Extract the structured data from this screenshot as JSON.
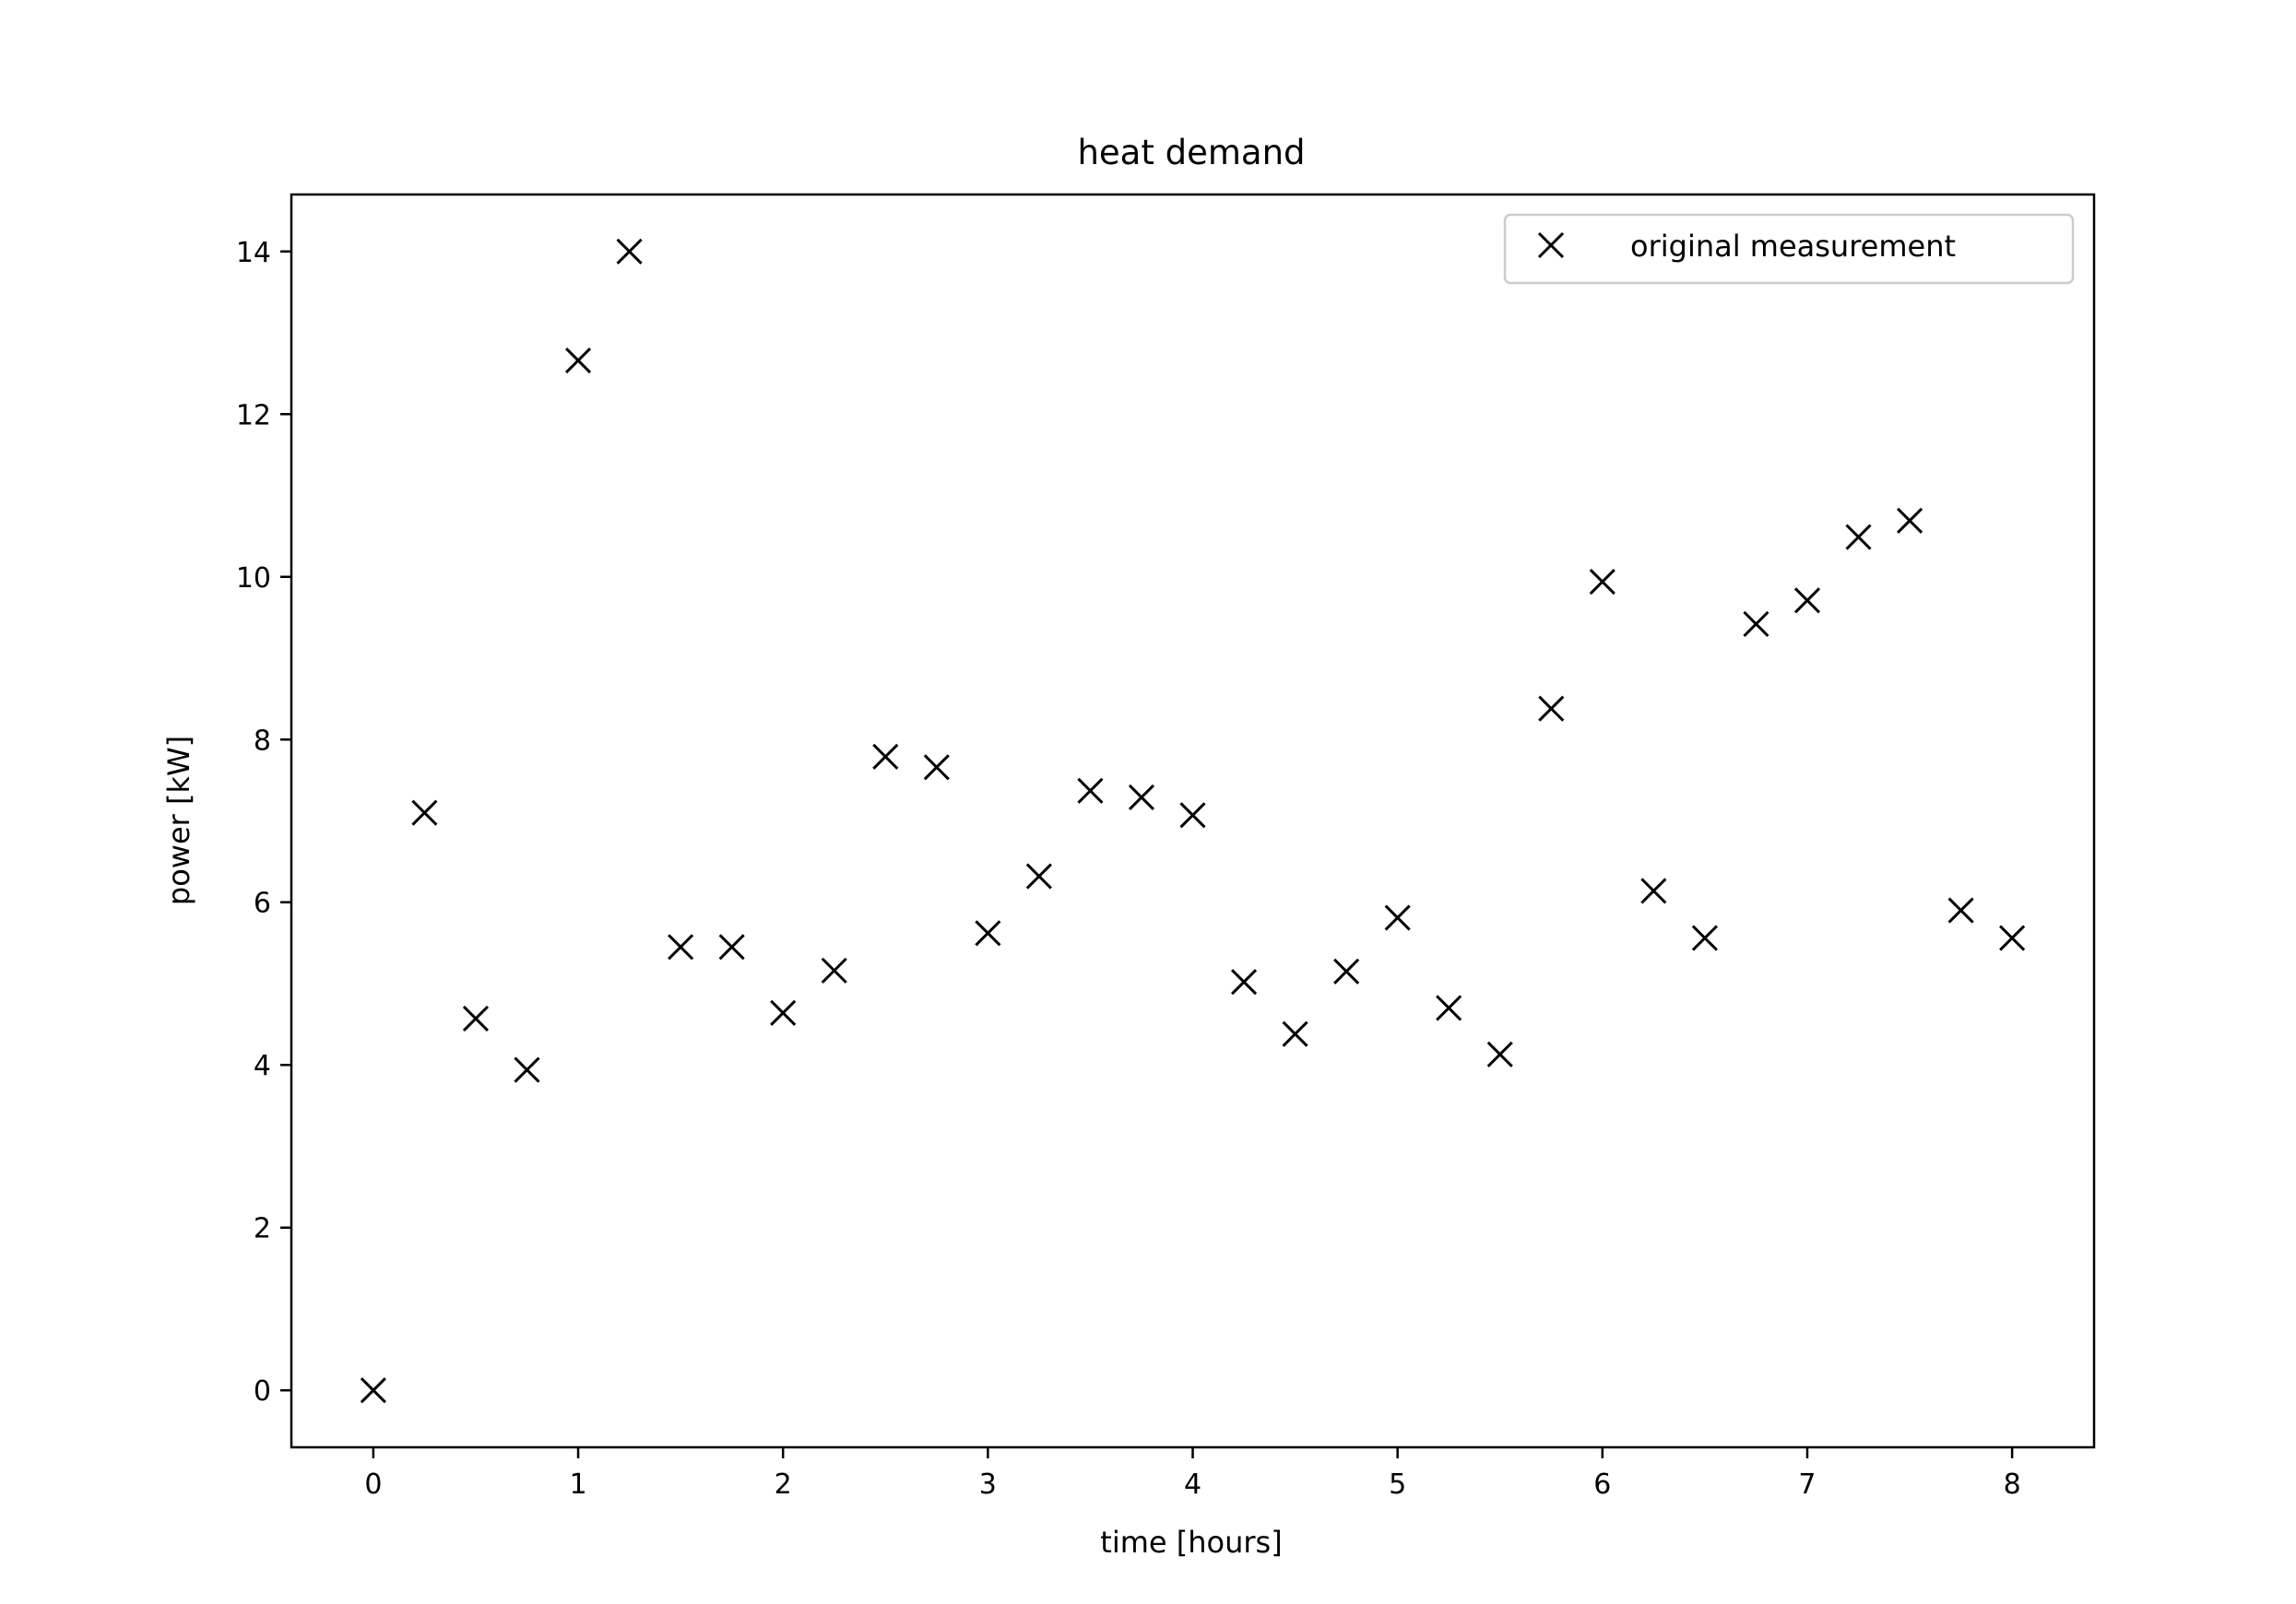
{
  "chart_data": {
    "type": "scatter",
    "title": "heat demand",
    "xlabel": "time [hours]",
    "ylabel": "power [kW]",
    "xlim": [
      -0.4,
      8.4
    ],
    "ylim": [
      -0.7,
      14.7
    ],
    "xticks": [
      0,
      1,
      2,
      3,
      4,
      5,
      6,
      7,
      8
    ],
    "yticks": [
      0,
      2,
      4,
      6,
      8,
      10,
      12,
      14
    ],
    "grid": false,
    "legend_position": "top-right",
    "marker": "x",
    "color": "#000000",
    "series": [
      {
        "name": "original measurement",
        "x": [
          0,
          0.25,
          0.5,
          0.75,
          1,
          1.25,
          1.5,
          1.75,
          2,
          2.25,
          2.5,
          2.75,
          3,
          3.25,
          3.5,
          3.75,
          4,
          4.25,
          4.5,
          4.75,
          5,
          5.25,
          5.5,
          5.75,
          6,
          6.25,
          6.5,
          6.75,
          7,
          7.25,
          7.5,
          7.75,
          8
        ],
        "y": [
          0,
          7.1,
          4.57,
          3.94,
          12.66,
          14.0,
          5.45,
          5.45,
          4.64,
          5.16,
          7.79,
          7.66,
          5.62,
          6.32,
          7.37,
          7.29,
          7.07,
          5.02,
          4.38,
          5.15,
          5.81,
          4.7,
          4.13,
          8.38,
          9.94,
          6.14,
          5.56,
          9.42,
          9.71,
          10.49,
          10.69,
          5.9,
          5.56
        ]
      }
    ]
  }
}
